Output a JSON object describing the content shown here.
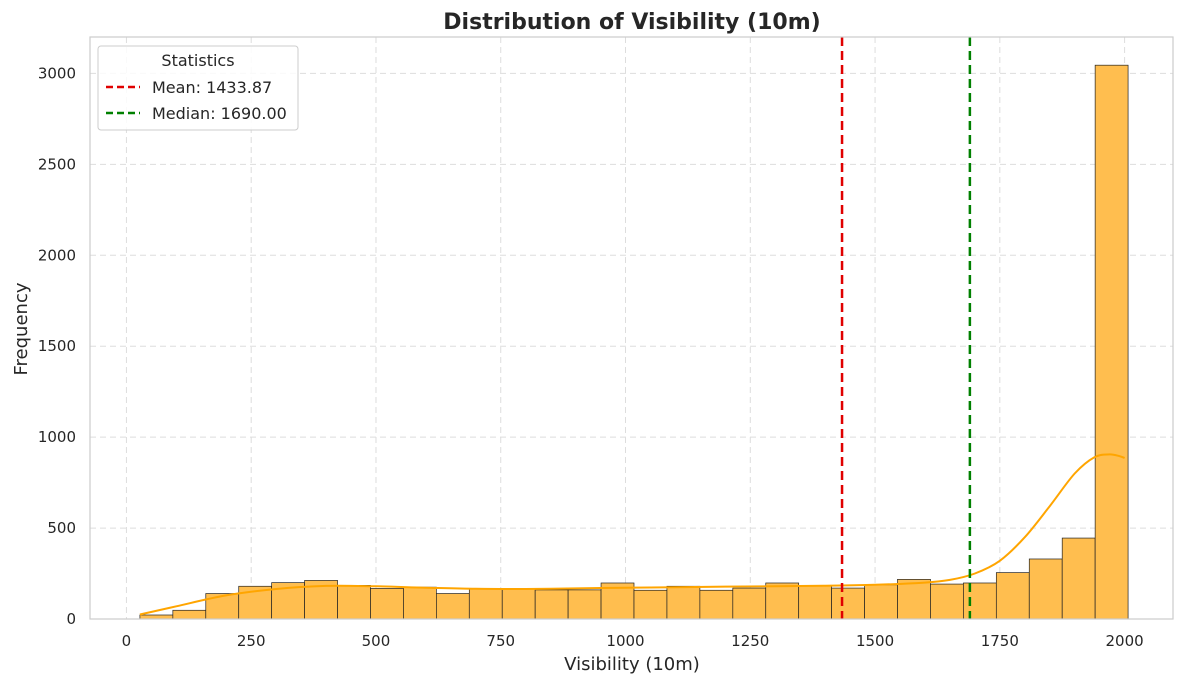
{
  "chart_data": {
    "type": "bar",
    "title": "Distribution of Visibility (10m)",
    "xlabel": "Visibility (10m)",
    "ylabel": "Frequency",
    "xlim": [
      -73,
      2097
    ],
    "ylim": [
      0,
      3200
    ],
    "xticks": [
      0,
      250,
      500,
      750,
      1000,
      1250,
      1500,
      1750,
      2000
    ],
    "yticks": [
      0,
      500,
      1000,
      1500,
      2000,
      2500,
      3000
    ],
    "grid": true,
    "bar_color": "#FFBE4F",
    "bar_edge_color": "#222222",
    "bins": [
      {
        "x0": 27,
        "x1": 93,
        "count": 22
      },
      {
        "x0": 93,
        "x1": 159,
        "count": 48
      },
      {
        "x0": 159,
        "x1": 225,
        "count": 140
      },
      {
        "x0": 225,
        "x1": 291,
        "count": 180
      },
      {
        "x0": 291,
        "x1": 357,
        "count": 200
      },
      {
        "x0": 357,
        "x1": 423,
        "count": 212
      },
      {
        "x0": 423,
        "x1": 489,
        "count": 185
      },
      {
        "x0": 489,
        "x1": 555,
        "count": 168
      },
      {
        "x0": 555,
        "x1": 621,
        "count": 175
      },
      {
        "x0": 621,
        "x1": 687,
        "count": 140
      },
      {
        "x0": 687,
        "x1": 753,
        "count": 165
      },
      {
        "x0": 753,
        "x1": 819,
        "count": 168
      },
      {
        "x0": 819,
        "x1": 885,
        "count": 160
      },
      {
        "x0": 885,
        "x1": 951,
        "count": 160
      },
      {
        "x0": 951,
        "x1": 1017,
        "count": 198
      },
      {
        "x0": 1017,
        "x1": 1083,
        "count": 158
      },
      {
        "x0": 1083,
        "x1": 1149,
        "count": 180
      },
      {
        "x0": 1149,
        "x1": 1215,
        "count": 158
      },
      {
        "x0": 1215,
        "x1": 1281,
        "count": 170
      },
      {
        "x0": 1281,
        "x1": 1347,
        "count": 198
      },
      {
        "x0": 1347,
        "x1": 1413,
        "count": 185
      },
      {
        "x0": 1413,
        "x1": 1479,
        "count": 170
      },
      {
        "x0": 1479,
        "x1": 1545,
        "count": 188
      },
      {
        "x0": 1545,
        "x1": 1611,
        "count": 218
      },
      {
        "x0": 1611,
        "x1": 1677,
        "count": 192
      },
      {
        "x0": 1677,
        "x1": 1743,
        "count": 198
      },
      {
        "x0": 1743,
        "x1": 1809,
        "count": 255
      },
      {
        "x0": 1809,
        "x1": 1875,
        "count": 330
      },
      {
        "x0": 1875,
        "x1": 1941,
        "count": 445
      },
      {
        "x0": 1941,
        "x1": 2007,
        "count": 3045
      }
    ],
    "kde": {
      "color": "#FFA500",
      "x": [
        27,
        100,
        200,
        300,
        400,
        500,
        600,
        700,
        800,
        900,
        1000,
        1100,
        1200,
        1300,
        1400,
        1500,
        1600,
        1650,
        1700,
        1750,
        1800,
        1850,
        1900,
        1940,
        1970,
        1990,
        2000
      ],
      "y": [
        25,
        70,
        130,
        165,
        182,
        180,
        172,
        166,
        165,
        168,
        172,
        175,
        178,
        180,
        183,
        188,
        200,
        215,
        250,
        320,
        450,
        620,
        800,
        890,
        905,
        895,
        885
      ]
    },
    "vlines": [
      {
        "x": 1433.87,
        "color": "#E00000",
        "style": "dashed"
      },
      {
        "x": 1690.0,
        "color": "#008000",
        "style": "dashed"
      }
    ],
    "legend": {
      "title": "Statistics",
      "placement": "top-left",
      "entries": [
        {
          "label": "Mean: 1433.87",
          "color": "#E00000"
        },
        {
          "label": "Median: 1690.00",
          "color": "#008000"
        }
      ]
    }
  }
}
